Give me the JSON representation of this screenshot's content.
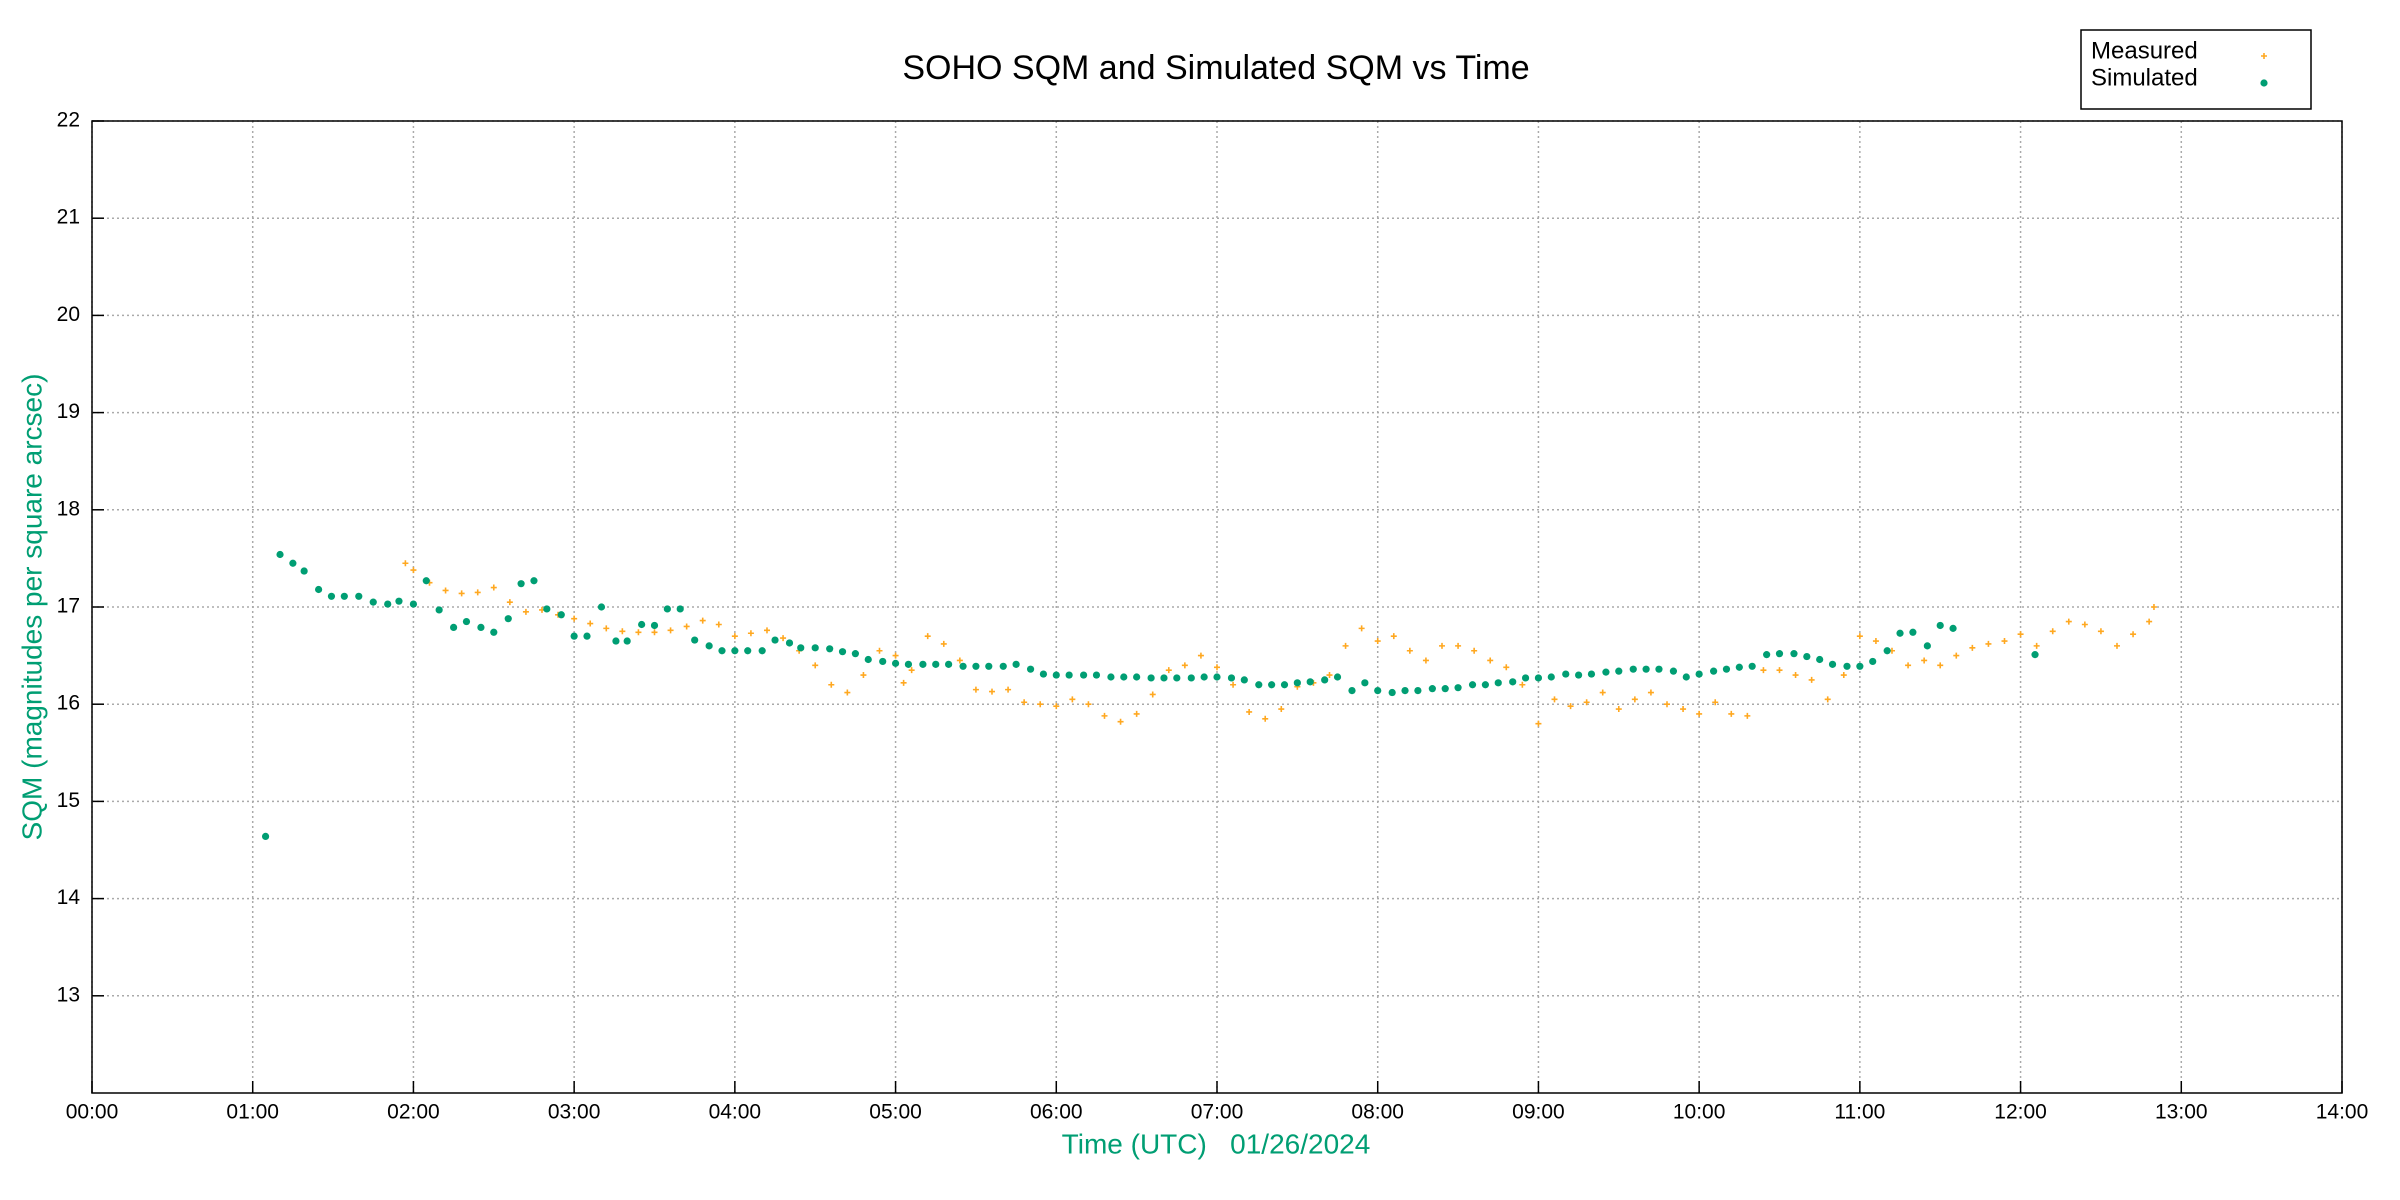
{
  "chart_data": {
    "type": "scatter",
    "title": "SOHO SQM and Simulated SQM vs Time",
    "x_label": "Time (UTC)   01/26/2024",
    "y_label": "SQM (magnitudes per square arcsec)",
    "xlim": [
      0,
      14
    ],
    "ylim": [
      12,
      22
    ],
    "xticks": [
      {
        "value": 0,
        "label": "00:00"
      },
      {
        "value": 1,
        "label": "01:00"
      },
      {
        "value": 2,
        "label": "02:00"
      },
      {
        "value": 3,
        "label": "03:00"
      },
      {
        "value": 4,
        "label": "04:00"
      },
      {
        "value": 5,
        "label": "05:00"
      },
      {
        "value": 6,
        "label": "06:00"
      },
      {
        "value": 7,
        "label": "07:00"
      },
      {
        "value": 8,
        "label": "08:00"
      },
      {
        "value": 9,
        "label": "09:00"
      },
      {
        "value": 10,
        "label": "10:00"
      },
      {
        "value": 11,
        "label": "11:00"
      },
      {
        "value": 12,
        "label": "12:00"
      },
      {
        "value": 13,
        "label": "13:00"
      },
      {
        "value": 14,
        "label": "14:00"
      }
    ],
    "yticks": [
      13,
      14,
      15,
      16,
      17,
      18,
      19,
      20,
      21,
      22
    ],
    "grid": true,
    "legend": "top-right",
    "series": [
      {
        "name": "Measured",
        "color": "#ffa820",
        "x": [
          1.95,
          2.0,
          2.1,
          2.2,
          2.3,
          2.4,
          2.5,
          2.6,
          2.7,
          2.8,
          2.9,
          3.0,
          3.1,
          3.2,
          3.3,
          3.4,
          3.5,
          3.6,
          3.7,
          3.8,
          3.9,
          4.0,
          4.1,
          4.2,
          4.3,
          4.4,
          4.5,
          4.6,
          4.7,
          4.8,
          4.9,
          5.0,
          5.05,
          5.1,
          5.2,
          5.3,
          5.4,
          5.5,
          5.6,
          5.7,
          5.8,
          5.9,
          6.0,
          6.1,
          6.2,
          6.3,
          6.4,
          6.5,
          6.6,
          6.7,
          6.8,
          6.9,
          7.0,
          7.1,
          7.2,
          7.3,
          7.4,
          7.5,
          7.6,
          7.7,
          7.8,
          7.9,
          8.0,
          8.1,
          8.2,
          8.3,
          8.4,
          8.5,
          8.6,
          8.7,
          8.8,
          8.9,
          9.0,
          9.1,
          9.2,
          9.3,
          9.4,
          9.5,
          9.6,
          9.7,
          9.8,
          9.9,
          10.0,
          10.1,
          10.2,
          10.3,
          10.4,
          10.5,
          10.6,
          10.7,
          10.8,
          10.9,
          11.0,
          11.1,
          11.2,
          11.3,
          11.4,
          11.5,
          11.6,
          11.7,
          11.8,
          11.9,
          12.0,
          12.1,
          12.2,
          12.3,
          12.4,
          12.5,
          12.6,
          12.7,
          12.8,
          12.83
        ],
        "values": [
          17.45,
          17.38,
          17.25,
          17.17,
          17.14,
          17.15,
          17.2,
          17.05,
          16.95,
          16.97,
          16.92,
          16.88,
          16.83,
          16.78,
          16.75,
          16.74,
          16.74,
          16.76,
          16.8,
          16.86,
          16.82,
          16.7,
          16.73,
          16.76,
          16.68,
          16.55,
          16.4,
          16.2,
          16.12,
          16.3,
          16.55,
          16.5,
          16.22,
          16.35,
          16.7,
          16.62,
          16.45,
          16.15,
          16.13,
          16.15,
          16.02,
          16.0,
          15.98,
          16.05,
          16.0,
          15.88,
          15.82,
          15.9,
          16.1,
          16.35,
          16.4,
          16.5,
          16.38,
          16.2,
          15.92,
          15.85,
          15.95,
          16.18,
          16.22,
          16.3,
          16.6,
          16.78,
          16.65,
          16.7,
          16.55,
          16.45,
          16.6,
          16.6,
          16.55,
          16.45,
          16.38,
          16.2,
          15.8,
          16.05,
          15.98,
          16.02,
          16.12,
          15.95,
          16.05,
          16.12,
          16.0,
          15.95,
          15.9,
          16.02,
          15.9,
          15.88,
          16.35,
          16.35,
          16.3,
          16.25,
          16.05,
          16.3,
          16.7,
          16.65,
          16.55,
          16.4,
          16.45,
          16.4,
          16.5,
          16.58,
          16.62,
          16.65,
          16.72,
          16.6,
          16.75,
          16.85,
          16.82,
          16.75,
          16.6,
          16.72,
          16.85,
          17.0
        ]
      },
      {
        "name": "Simulated",
        "color": "#009e73",
        "x": [
          1.08,
          1.17,
          1.25,
          1.32,
          1.41,
          1.49,
          1.57,
          1.66,
          1.75,
          1.84,
          1.91,
          2.0,
          2.08,
          2.16,
          2.25,
          2.33,
          2.42,
          2.5,
          2.59,
          2.67,
          2.75,
          2.83,
          2.92,
          3.0,
          3.08,
          3.17,
          3.26,
          3.33,
          3.42,
          3.5,
          3.58,
          3.66,
          3.75,
          3.84,
          3.92,
          4.0,
          4.08,
          4.17,
          4.25,
          4.34,
          4.41,
          4.5,
          4.59,
          4.67,
          4.75,
          4.83,
          4.92,
          5.0,
          5.08,
          5.17,
          5.25,
          5.33,
          5.42,
          5.5,
          5.58,
          5.67,
          5.75,
          5.84,
          5.92,
          6.0,
          6.08,
          6.17,
          6.25,
          6.34,
          6.42,
          6.5,
          6.59,
          6.67,
          6.75,
          6.84,
          6.92,
          7.0,
          7.09,
          7.17,
          7.26,
          7.34,
          7.42,
          7.5,
          7.58,
          7.67,
          7.75,
          7.84,
          7.92,
          8.0,
          8.09,
          8.17,
          8.25,
          8.34,
          8.42,
          8.5,
          8.59,
          8.67,
          8.75,
          8.84,
          8.92,
          9.0,
          9.08,
          9.17,
          9.25,
          9.33,
          9.42,
          9.5,
          9.59,
          9.67,
          9.75,
          9.84,
          9.92,
          10.0,
          10.09,
          10.17,
          10.25,
          10.33,
          10.42,
          10.5,
          10.59,
          10.67,
          10.75,
          10.83,
          10.92,
          11.0,
          11.08,
          11.17,
          11.25,
          11.33,
          11.42,
          11.5,
          11.58,
          12.09
        ],
        "values": [
          14.64,
          17.54,
          17.45,
          17.37,
          17.18,
          17.11,
          17.11,
          17.11,
          17.05,
          17.03,
          17.06,
          17.03,
          17.27,
          16.97,
          16.79,
          16.85,
          16.79,
          16.74,
          16.88,
          17.24,
          17.27,
          16.98,
          16.92,
          16.7,
          16.7,
          17.0,
          16.65,
          16.65,
          16.82,
          16.81,
          16.98,
          16.98,
          16.66,
          16.6,
          16.55,
          16.55,
          16.55,
          16.55,
          16.66,
          16.63,
          16.58,
          16.58,
          16.57,
          16.54,
          16.52,
          16.46,
          16.44,
          16.42,
          16.41,
          16.41,
          16.41,
          16.41,
          16.39,
          16.39,
          16.39,
          16.39,
          16.41,
          16.36,
          16.31,
          16.3,
          16.3,
          16.3,
          16.3,
          16.28,
          16.28,
          16.28,
          16.27,
          16.27,
          16.27,
          16.27,
          16.28,
          16.28,
          16.27,
          16.25,
          16.2,
          16.2,
          16.2,
          16.22,
          16.23,
          16.25,
          16.28,
          16.14,
          16.22,
          16.14,
          16.12,
          16.14,
          16.14,
          16.16,
          16.16,
          16.17,
          16.2,
          16.2,
          16.22,
          16.23,
          16.27,
          16.27,
          16.28,
          16.31,
          16.3,
          16.31,
          16.33,
          16.34,
          16.36,
          16.36,
          16.36,
          16.34,
          16.28,
          16.31,
          16.34,
          16.36,
          16.38,
          16.39,
          16.51,
          16.52,
          16.52,
          16.49,
          16.46,
          16.41,
          16.39,
          16.39,
          16.44,
          16.55,
          16.73,
          16.74,
          16.6,
          16.81,
          16.78,
          16.51
        ]
      }
    ]
  }
}
